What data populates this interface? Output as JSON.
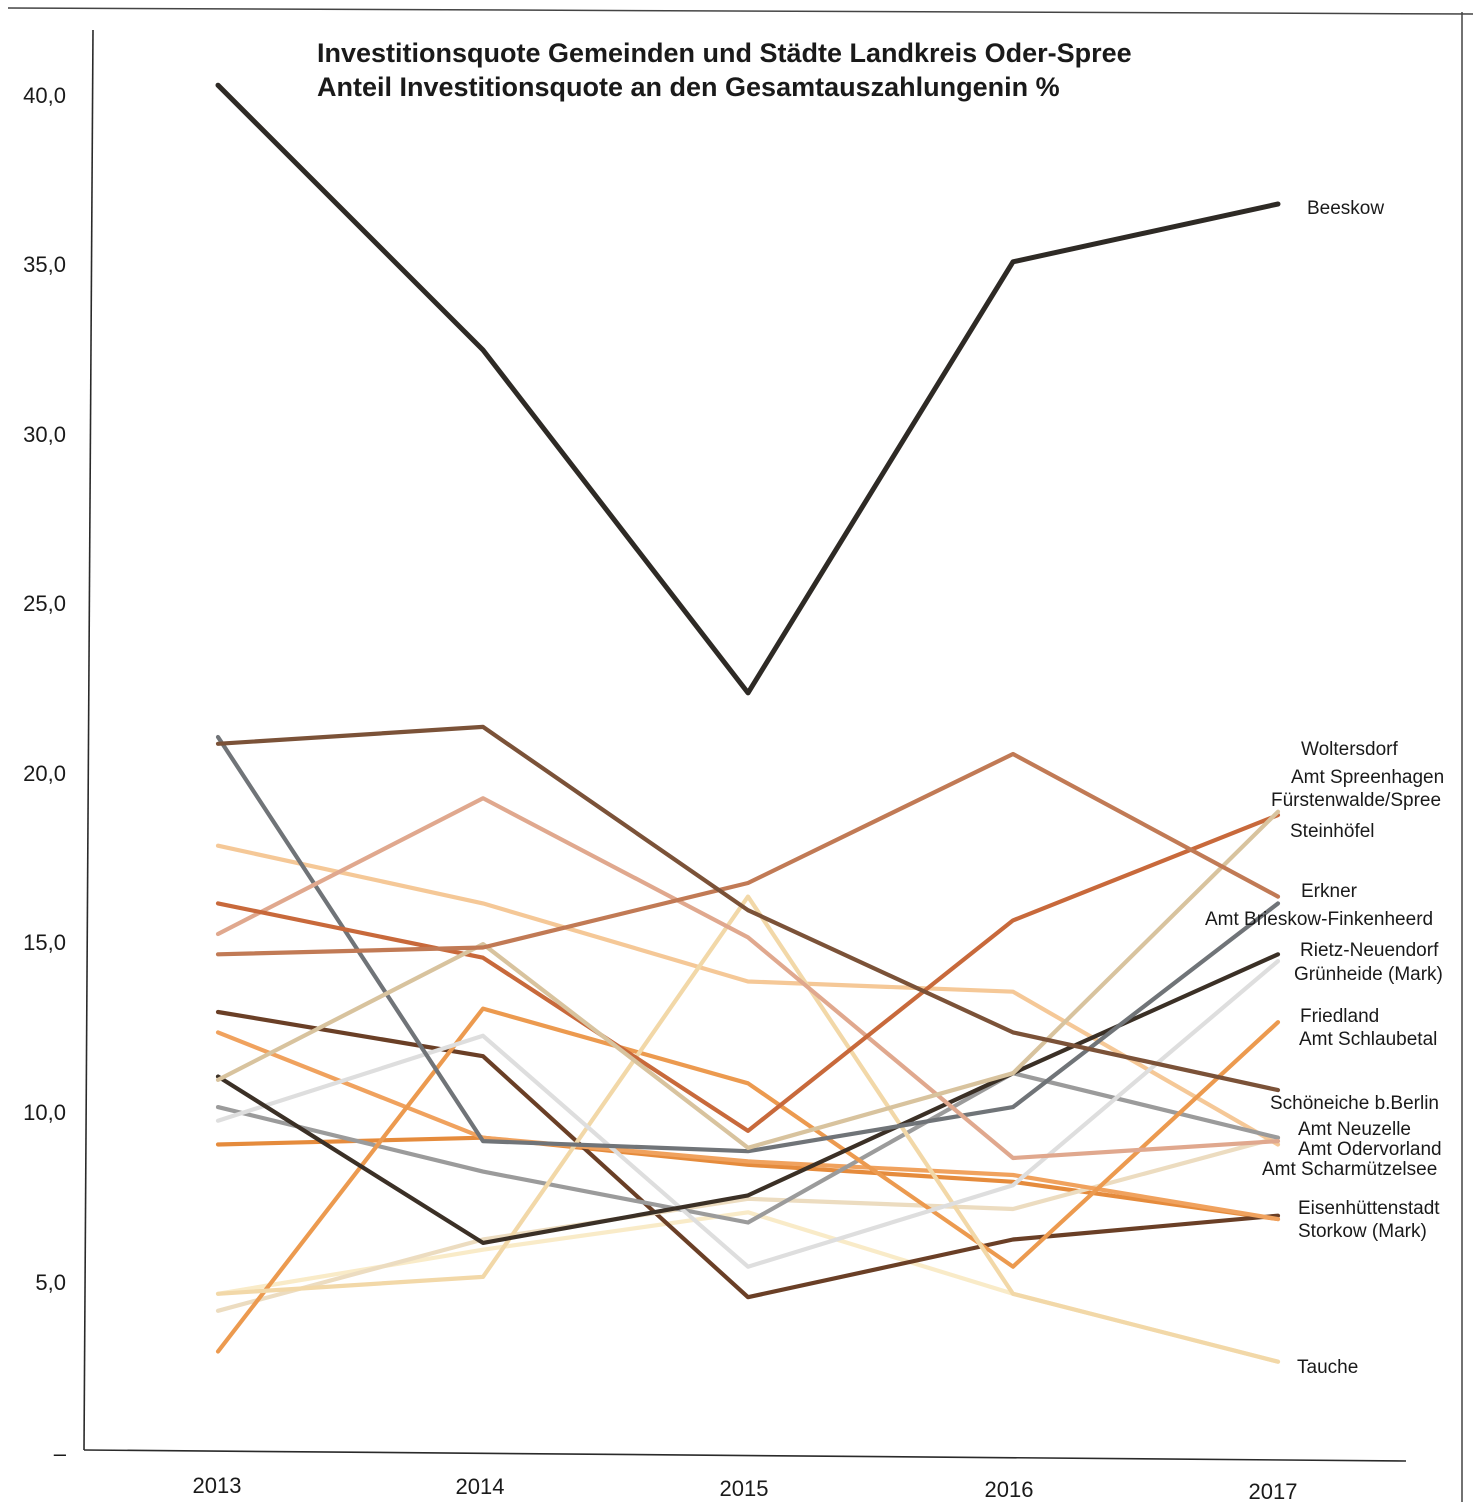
{
  "chart_data": {
    "type": "line",
    "title": "Investitionsquote Gemeinden und Städte Landkreis Oder-Spree",
    "subtitle": "Anteil Investitionsquote an den Gesamtauszahlungenin %",
    "categories": [
      "2013",
      "2014",
      "2015",
      "2016",
      "2017"
    ],
    "ylim": [
      0,
      40
    ],
    "yticks": [
      "–",
      "5,0",
      "10,0",
      "15,0",
      "20,0",
      "25,0",
      "30,0",
      "35,0",
      "40,0"
    ],
    "ytick_values": [
      0,
      5,
      10,
      15,
      20,
      25,
      30,
      35,
      40
    ],
    "grid": false,
    "legend": "direct labels at right end of lines",
    "series": [
      {
        "name": "Beeskow",
        "color": "#2e2a25",
        "values": [
          40.2,
          32.4,
          22.3,
          35.0,
          36.7
        ]
      },
      {
        "name": "Woltersdorf",
        "color": "#7b5238",
        "values": [
          20.8,
          21.3,
          15.9,
          12.3,
          10.6
        ]
      },
      {
        "name": "Amt Spreenhagen",
        "color": "#c17a55",
        "values": [
          14.6,
          14.8,
          16.7,
          20.5,
          16.3
        ]
      },
      {
        "name": "Fürstenwalde/Spree",
        "color": "#d8c39e",
        "values": [
          10.9,
          14.9,
          8.9,
          11.1,
          18.8
        ]
      },
      {
        "name": "Steinhöfel",
        "color": "#c8693b",
        "values": [
          16.1,
          14.5,
          9.4,
          15.6,
          18.7
        ]
      },
      {
        "name": "Erkner",
        "color": "#e0a88e",
        "values": [
          15.2,
          19.2,
          15.1,
          8.6,
          9.1
        ]
      },
      {
        "name": "Amt Brieskow-Finkenheerd",
        "color": "#707478",
        "values": [
          21.0,
          9.1,
          8.8,
          10.1,
          16.1
        ]
      },
      {
        "name": "Rietz-Neuendorf",
        "color": "#3b3026",
        "values": [
          11.0,
          6.1,
          7.5,
          11.1,
          14.6
        ]
      },
      {
        "name": "Grünheide (Mark)",
        "color": "#dedede",
        "values": [
          9.7,
          12.2,
          5.4,
          7.8,
          14.4
        ]
      },
      {
        "name": "Friedland",
        "color": "#f2d8a8",
        "values": [
          4.6,
          5.1,
          16.3,
          4.6,
          2.6
        ]
      },
      {
        "name": "Amt Schlaubetal",
        "color": "#ec9a4f",
        "values": [
          2.9,
          13.0,
          10.8,
          5.4,
          12.6
        ]
      },
      {
        "name": "Schöneiche b.Berlin",
        "color": "#9b9b9b",
        "values": [
          10.1,
          8.2,
          6.7,
          11.1,
          9.2
        ]
      },
      {
        "name": "Amt Neuzelle",
        "color": "#f5c897",
        "values": [
          17.8,
          16.1,
          13.8,
          13.5,
          9.0
        ]
      },
      {
        "name": "Amt Odervorland",
        "color": "#f0a25e",
        "values": [
          12.3,
          9.2,
          8.5,
          8.1,
          6.8
        ]
      },
      {
        "name": "Amt Scharmützelsee",
        "color": "#ecdcc0",
        "values": [
          4.1,
          6.2,
          7.4,
          7.1,
          9.2
        ]
      },
      {
        "name": "Eisenhüttenstadt",
        "color": "#6a3f26",
        "values": [
          12.9,
          11.6,
          4.5,
          6.2,
          6.9
        ]
      },
      {
        "name": "Storkow (Mark)",
        "color": "#e58b3c",
        "values": [
          9.0,
          9.2,
          8.4,
          7.9,
          6.8
        ]
      },
      {
        "name": "Tauche",
        "color": "#f9ebc8",
        "values": [
          4.6,
          5.9,
          7.0,
          4.6,
          2.6
        ]
      }
    ]
  },
  "series_labels": [
    "Beeskow",
    "Woltersdorf",
    "Amt Spreenhagen",
    "Fürstenwalde/Spree",
    "Steinhöfel",
    "Erkner",
    "Amt Brieskow-Finkenheerd",
    "Rietz-Neuendorf",
    "Grünheide (Mark)",
    "Friedland",
    "Amt Schlaubetal",
    "Schöneiche b.Berlin",
    "Amt Neuzelle",
    "Amt Odervorland",
    "Amt Scharmützelsee",
    "Eisenhüttenstadt",
    "Storkow (Mark)",
    "Tauche"
  ]
}
